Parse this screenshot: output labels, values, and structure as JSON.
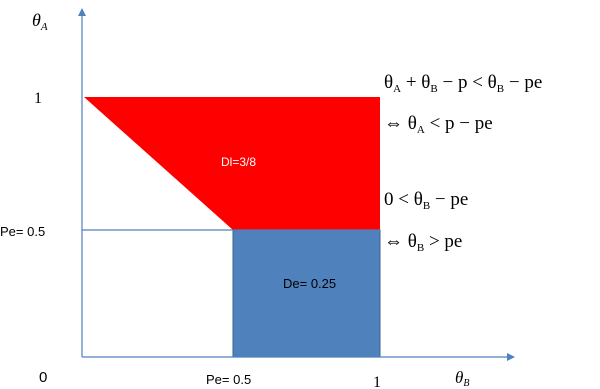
{
  "axes": {
    "y_axis_label": "θ",
    "y_axis_label_sub": "A",
    "x_axis_label": "θ",
    "x_axis_label_sub": "B",
    "origin_label": "0",
    "y_tick_1": "1",
    "y_tick_pe": "Pe= 0.5",
    "x_tick_pe": "Pe= 0.5",
    "x_tick_1": "1"
  },
  "regions": {
    "dl_label": "Dl=3/8",
    "de_label": "De= 0.25",
    "dl_color": "#ff0000",
    "de_color": "#4f81bd",
    "axis_color": "#4f81bd"
  },
  "conditions": {
    "top_line1_parts": [
      "θ",
      "A",
      " + θ",
      "B",
      " − p < θ",
      "B",
      " − pe"
    ],
    "top_line2_parts": [
      "⇔ θ",
      "A",
      " < p − pe"
    ],
    "bottom_line1_parts": [
      "0 < θ",
      "B",
      " − pe"
    ],
    "bottom_line2_parts": [
      "⇔ θ",
      "B",
      " > pe"
    ]
  }
}
